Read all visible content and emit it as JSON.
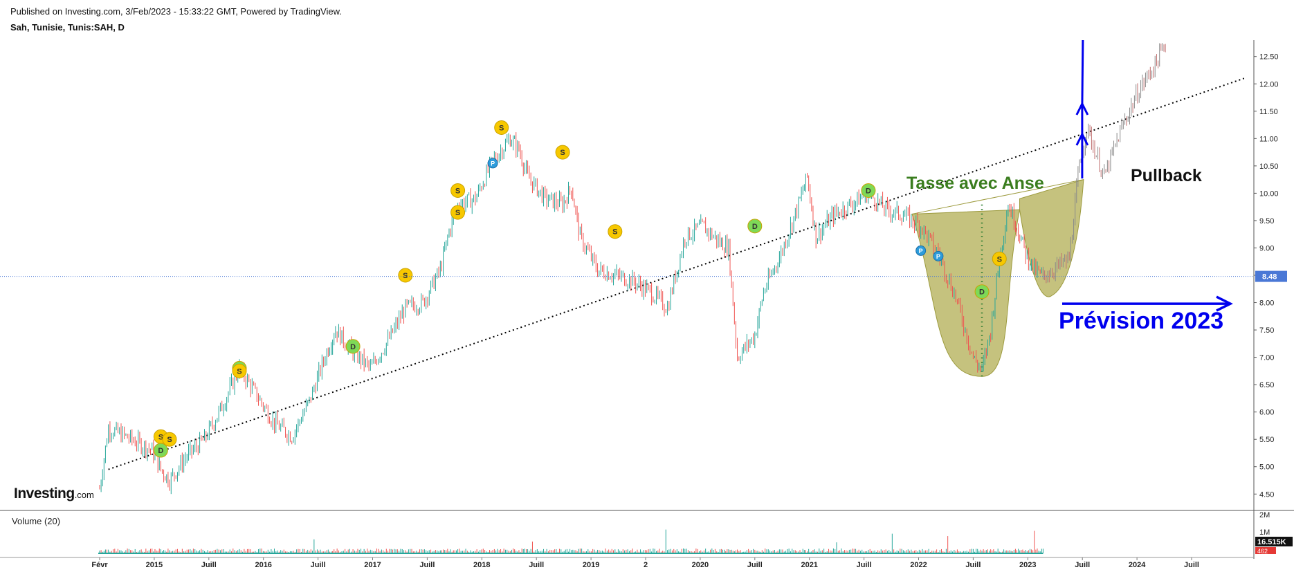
{
  "header": {
    "published": "Published on Investing.com, 3/Feb/2023 - 15:33:22 GMT, Powered by TradingView.",
    "symbol": "Sah, Tunisie, Tunis:SAH, D"
  },
  "logo": {
    "main": "Investing",
    "suffix": ".com"
  },
  "volume_panel": {
    "label": "Volume (20)",
    "ticks": [
      "2M",
      "1M"
    ],
    "current_label": "16.515K",
    "current_label2": "462"
  },
  "colors": {
    "up": "#26a69a",
    "down": "#ef5350",
    "trendline": "#000000",
    "cup_fill": "#b5b15a",
    "projection": "#0000ee",
    "annotation_green": "#3a7d1e",
    "last_price_bg": "#4a78d6"
  },
  "chart_data": {
    "type": "candlestick",
    "title": "Sah, Tunisie, Tunis:SAH, D",
    "y_axis": {
      "min": 4.2,
      "max": 12.8,
      "ticks": [
        "12.50",
        "12.00",
        "11.50",
        "11.00",
        "10.50",
        "10.00",
        "9.50",
        "9.00",
        "8.50",
        "8.00",
        "7.50",
        "7.00",
        "6.50",
        "6.00",
        "5.50",
        "5.00",
        "4.50"
      ],
      "position": "right"
    },
    "x_axis": {
      "tick_labels": [
        "Févr",
        "2015",
        "Juill",
        "2016",
        "Juill",
        "2017",
        "Juill",
        "2018",
        "Juill",
        "2019",
        "2",
        "2020",
        "Juill",
        "2021",
        "Juill",
        "2022",
        "Juill",
        "2023",
        "Juill",
        "2024",
        "Juill"
      ]
    },
    "last_price": "8.48",
    "price_path": [
      {
        "date": "2014-02",
        "close": 4.6
      },
      {
        "date": "2014-03",
        "close": 5.7
      },
      {
        "date": "2014-05",
        "close": 5.55
      },
      {
        "date": "2014-08",
        "close": 5.3
      },
      {
        "date": "2014-09",
        "close": 4.95
      },
      {
        "date": "2014-10",
        "close": 4.75
      },
      {
        "date": "2014-12",
        "close": 5.2
      },
      {
        "date": "2015-02",
        "close": 5.5
      },
      {
        "date": "2015-04",
        "close": 6.1
      },
      {
        "date": "2015-06",
        "close": 6.8
      },
      {
        "date": "2015-08",
        "close": 6.3
      },
      {
        "date": "2015-10",
        "close": 5.8
      },
      {
        "date": "2015-12",
        "close": 5.55
      },
      {
        "date": "2016-02",
        "close": 6.2
      },
      {
        "date": "2016-04",
        "close": 7.1
      },
      {
        "date": "2016-05",
        "close": 7.5
      },
      {
        "date": "2016-07",
        "close": 7.1
      },
      {
        "date": "2016-09",
        "close": 6.8
      },
      {
        "date": "2016-11",
        "close": 7.3
      },
      {
        "date": "2017-01",
        "close": 7.9
      },
      {
        "date": "2017-03",
        "close": 8.0
      },
      {
        "date": "2017-05",
        "close": 8.6
      },
      {
        "date": "2017-06",
        "close": 9.3
      },
      {
        "date": "2017-07",
        "close": 9.8
      },
      {
        "date": "2017-09",
        "close": 9.9
      },
      {
        "date": "2017-11",
        "close": 10.6
      },
      {
        "date": "2018-01",
        "close": 11.0
      },
      {
        "date": "2018-02",
        "close": 10.8
      },
      {
        "date": "2018-03",
        "close": 10.3
      },
      {
        "date": "2018-05",
        "close": 9.9
      },
      {
        "date": "2018-07",
        "close": 9.8
      },
      {
        "date": "2018-08",
        "close": 10.1
      },
      {
        "date": "2018-09",
        "close": 9.2
      },
      {
        "date": "2018-11",
        "close": 8.6
      },
      {
        "date": "2019-01",
        "close": 8.5
      },
      {
        "date": "2019-03",
        "close": 8.4
      },
      {
        "date": "2019-05",
        "close": 8.2
      },
      {
        "date": "2019-07",
        "close": 7.9
      },
      {
        "date": "2019-09",
        "close": 9.2
      },
      {
        "date": "2019-11",
        "close": 9.4
      },
      {
        "date": "2020-01",
        "close": 9.1
      },
      {
        "date": "2020-02",
        "close": 9.0
      },
      {
        "date": "2020-03",
        "close": 7.0
      },
      {
        "date": "2020-05",
        "close": 7.4
      },
      {
        "date": "2020-06",
        "close": 8.2
      },
      {
        "date": "2020-08",
        "close": 8.9
      },
      {
        "date": "2020-10",
        "close": 9.8
      },
      {
        "date": "2020-11",
        "close": 10.3
      },
      {
        "date": "2020-12",
        "close": 9.2
      },
      {
        "date": "2021-02",
        "close": 9.6
      },
      {
        "date": "2021-04",
        "close": 9.8
      },
      {
        "date": "2021-06",
        "close": 10.0
      },
      {
        "date": "2021-08",
        "close": 9.7
      },
      {
        "date": "2021-10",
        "close": 9.6
      },
      {
        "date": "2021-12",
        "close": 9.4
      },
      {
        "date": "2022-02",
        "close": 8.9
      },
      {
        "date": "2022-04",
        "close": 8.1
      },
      {
        "date": "2022-06",
        "close": 7.0
      },
      {
        "date": "2022-07",
        "close": 6.75
      },
      {
        "date": "2022-08",
        "close": 7.5
      },
      {
        "date": "2022-09",
        "close": 8.8
      },
      {
        "date": "2022-10",
        "close": 9.8
      },
      {
        "date": "2022-11",
        "close": 9.4
      },
      {
        "date": "2022-12",
        "close": 8.9
      },
      {
        "date": "2023-01",
        "close": 8.6
      },
      {
        "date": "2023-02",
        "close": 8.48
      }
    ],
    "forecast_path": [
      {
        "date": "2023-02",
        "close": 8.48
      },
      {
        "date": "2023-05",
        "close": 8.8
      },
      {
        "date": "2023-06",
        "close": 10.3
      },
      {
        "date": "2023-07",
        "close": 11.2
      },
      {
        "date": "2023-09",
        "close": 10.3
      },
      {
        "date": "2023-11",
        "close": 11.2
      },
      {
        "date": "2024-01",
        "close": 11.9
      },
      {
        "date": "2024-03",
        "close": 12.4
      },
      {
        "date": "2024-04",
        "close": 12.75
      }
    ],
    "trendline": {
      "from": {
        "date": "2014-03",
        "value": 4.95
      },
      "to": {
        "date": "2025-01",
        "value": 12.1
      }
    },
    "event_markers": [
      {
        "label": "S",
        "date": "2014-09",
        "value": 5.55
      },
      {
        "label": "S",
        "date": "2014-10",
        "value": 5.5
      },
      {
        "label": "D",
        "date": "2014-09",
        "value": 5.3
      },
      {
        "label": "D",
        "date": "2015-06",
        "value": 6.8
      },
      {
        "label": "S",
        "date": "2015-06",
        "value": 6.75
      },
      {
        "label": "D",
        "date": "2016-07",
        "value": 7.2
      },
      {
        "label": "S",
        "date": "2017-01",
        "value": 8.5
      },
      {
        "label": "S",
        "date": "2017-07",
        "value": 9.65
      },
      {
        "label": "S",
        "date": "2017-07",
        "value": 10.05
      },
      {
        "label": "P",
        "date": "2017-11",
        "value": 10.55
      },
      {
        "label": "S",
        "date": "2017-12",
        "value": 11.2
      },
      {
        "label": "S",
        "date": "2018-07",
        "value": 10.75
      },
      {
        "label": "S",
        "date": "2019-01",
        "value": 9.3
      },
      {
        "label": "D",
        "date": "2020-05",
        "value": 9.4
      },
      {
        "label": "D",
        "date": "2021-06",
        "value": 10.05
      },
      {
        "label": "P",
        "date": "2021-12",
        "value": 8.95
      },
      {
        "label": "P",
        "date": "2022-02",
        "value": 8.85
      },
      {
        "label": "D",
        "date": "2022-07",
        "value": 8.2
      },
      {
        "label": "S",
        "date": "2022-09",
        "value": 8.8
      }
    ],
    "annotations": {
      "pattern": "Tasse avec Anse",
      "pullback": "Pullback",
      "forecast": "Prévision 2023"
    },
    "volume": {
      "current": "16.515K"
    }
  }
}
